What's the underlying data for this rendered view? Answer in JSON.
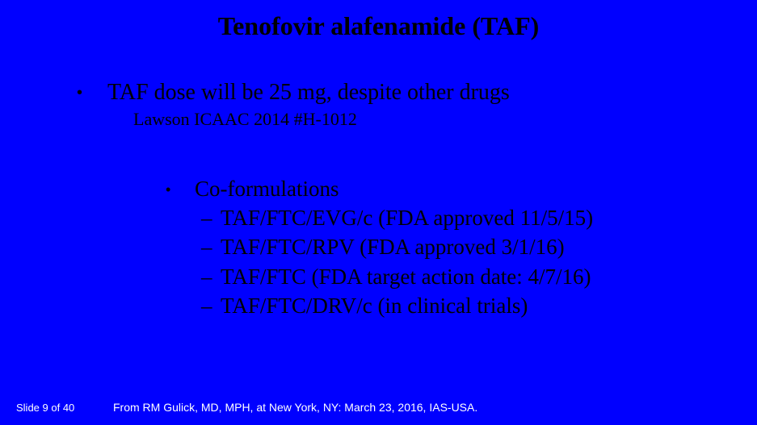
{
  "colors": {
    "background": "#0000ff",
    "text": "#000000",
    "footer_text": "#ffffff"
  },
  "title": "Tenofovir alafenamide (TAF)",
  "top_bullet": "TAF dose will be 25 mg, despite other drugs",
  "citation": "Lawson ICAAC 2014 #H-1012",
  "sub_header": "Co-formulations",
  "sub_items": [
    "TAF/FTC/EVG/c (FDA approved 11/5/15)",
    "TAF/FTC/RPV (FDA approved 3/1/16)",
    "TAF/FTC (FDA target action date: 4/7/16)",
    "TAF/FTC/DRV/c (in clinical trials)"
  ],
  "footer": {
    "slide": "Slide 9 of 40",
    "source": "From RM Gulick, MD, MPH, at New York, NY: March 23, 2016, IAS-USA."
  }
}
